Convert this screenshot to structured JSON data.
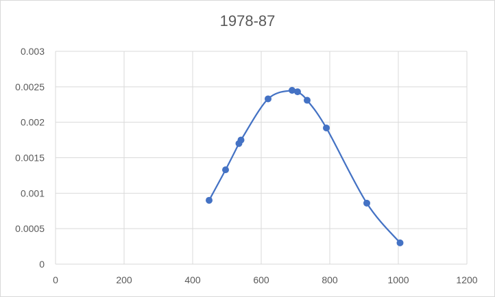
{
  "chart_data": {
    "type": "scatter",
    "title": "1978-87",
    "xlabel": "",
    "ylabel": "",
    "xlim": [
      0,
      1200
    ],
    "ylim": [
      0,
      0.003
    ],
    "x_ticks": [
      "0",
      "200",
      "400",
      "600",
      "800",
      "1000",
      "1200"
    ],
    "y_ticks": [
      "0",
      "0.0005",
      "0.001",
      "0.0015",
      "0.002",
      "0.0025",
      "0.003"
    ],
    "x_tick_values": [
      0,
      200,
      400,
      600,
      800,
      1000,
      1200
    ],
    "y_tick_values": [
      0,
      0.0005,
      0.001,
      0.0015,
      0.002,
      0.0025,
      0.003
    ],
    "grid": true,
    "smoothed_line": true,
    "series": [
      {
        "color": "#4472c4",
        "points": [
          {
            "x": 448,
            "y": 0.0009
          },
          {
            "x": 496,
            "y": 0.00133
          },
          {
            "x": 535,
            "y": 0.0017
          },
          {
            "x": 541,
            "y": 0.00175
          },
          {
            "x": 620,
            "y": 0.00233
          },
          {
            "x": 690,
            "y": 0.00245
          },
          {
            "x": 706,
            "y": 0.00243
          },
          {
            "x": 734,
            "y": 0.00231
          },
          {
            "x": 790,
            "y": 0.00192
          },
          {
            "x": 908,
            "y": 0.00086
          },
          {
            "x": 1005,
            "y": 0.0003
          }
        ]
      }
    ]
  }
}
